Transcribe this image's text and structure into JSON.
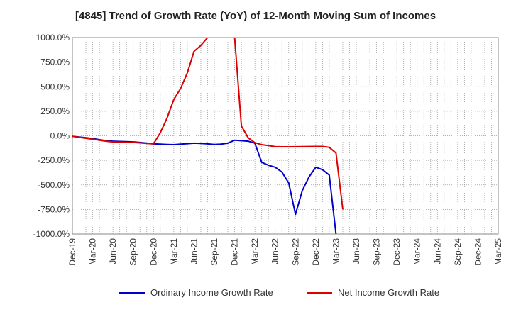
{
  "chart_data": {
    "type": "line",
    "title": "[4845]  Trend of Growth Rate (YoY) of 12-Month Moving Sum of Incomes",
    "xlabel": "",
    "ylabel": "",
    "ylim": [
      -1000,
      1000
    ],
    "y_ticks": [
      1000,
      750,
      500,
      250,
      0,
      -250,
      -500,
      -750,
      -1000
    ],
    "y_tick_labels": [
      "1000.0%",
      "750.0%",
      "500.0%",
      "250.0%",
      "0.0%",
      "-250.0%",
      "-500.0%",
      "-750.0%",
      "-1000.0%"
    ],
    "x_tick_labels": [
      "Dec-19",
      "Mar-20",
      "Jun-20",
      "Sep-20",
      "Dec-20",
      "Mar-21",
      "Jun-21",
      "Sep-21",
      "Dec-21",
      "Mar-22",
      "Jun-22",
      "Sep-22",
      "Dec-22",
      "Mar-23",
      "Jun-23",
      "Sep-23",
      "Dec-23",
      "Mar-24",
      "Jun-24",
      "Sep-24",
      "Dec-24",
      "Mar-25"
    ],
    "grid": true,
    "legend_position": "bottom",
    "series": [
      {
        "name": "Ordinary Income Growth Rate",
        "color": "#0000cc",
        "x": [
          "Dec-19",
          "Jan-20",
          "Feb-20",
          "Mar-20",
          "Apr-20",
          "May-20",
          "Jun-20",
          "Jul-20",
          "Aug-20",
          "Sep-20",
          "Oct-20",
          "Nov-20",
          "Dec-20",
          "Jan-21",
          "Feb-21",
          "Mar-21",
          "Apr-21",
          "May-21",
          "Jun-21",
          "Jul-21",
          "Aug-21",
          "Sep-21",
          "Oct-21",
          "Nov-21",
          "Dec-21",
          "Jan-22",
          "Feb-22",
          "Mar-22",
          "Apr-22",
          "May-22",
          "Jun-22",
          "Jul-22",
          "Aug-22",
          "Sep-22",
          "Oct-22",
          "Nov-22",
          "Dec-22",
          "Jan-23",
          "Feb-23",
          "Mar-23"
        ],
        "y": [
          -5,
          -12,
          -20,
          -28,
          -40,
          -50,
          -55,
          -58,
          -60,
          -62,
          -68,
          -75,
          -82,
          -85,
          -88,
          -90,
          -85,
          -80,
          -75,
          -78,
          -82,
          -88,
          -85,
          -75,
          -45,
          -50,
          -55,
          -75,
          -270,
          -300,
          -320,
          -370,
          -480,
          -800,
          -560,
          -420,
          -320,
          -345,
          -400,
          -1000
        ]
      },
      {
        "name": "Net Income Growth Rate",
        "color": "#dd0000",
        "x": [
          "Dec-19",
          "Jan-20",
          "Feb-20",
          "Mar-20",
          "Apr-20",
          "May-20",
          "Jun-20",
          "Jul-20",
          "Aug-20",
          "Sep-20",
          "Oct-20",
          "Nov-20",
          "Dec-20",
          "Jan-21",
          "Feb-21",
          "Mar-21",
          "Apr-21",
          "May-21",
          "Jun-21",
          "Jul-21",
          "Aug-21",
          "Sep-21",
          "Oct-21",
          "Nov-21",
          "Dec-21",
          "Jan-22",
          "Feb-22",
          "Mar-22",
          "Apr-22",
          "May-22",
          "Jun-22",
          "Jul-22",
          "Aug-22",
          "Sep-22",
          "Oct-22",
          "Nov-22",
          "Dec-22",
          "Jan-23",
          "Feb-23",
          "Mar-23",
          "Apr-23"
        ],
        "y": [
          -5,
          -15,
          -25,
          -35,
          -45,
          -55,
          -62,
          -65,
          -67,
          -68,
          -72,
          -78,
          -82,
          30,
          180,
          370,
          480,
          640,
          860,
          920,
          1000,
          1000,
          1000,
          1000,
          1000,
          100,
          -20,
          -70,
          -90,
          -100,
          -110,
          -112,
          -112,
          -111,
          -110,
          -109,
          -108,
          -108,
          -118,
          -175,
          -750
        ]
      }
    ]
  }
}
